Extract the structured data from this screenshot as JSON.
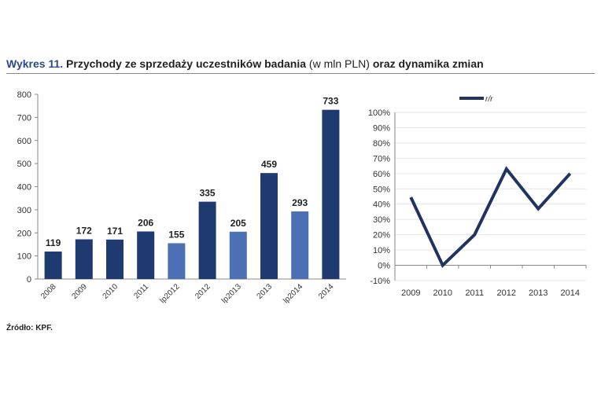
{
  "title": {
    "prefix": "Wykres 11.",
    "main": "Przychody ze sprzedaży uczestników badania",
    "unit": "(w mln PLN)",
    "suffix": "oraz dynamika zmian"
  },
  "source": "Źródło: KPF.",
  "colors": {
    "dark": "#1f3a70",
    "light": "#4d6fb3",
    "line": "#1f3461"
  },
  "chart_data": [
    {
      "type": "bar",
      "categories": [
        "2008",
        "2009",
        "2010",
        "2011",
        "lp2012",
        "2012",
        "lp2013",
        "2013",
        "lp2014",
        "2014"
      ],
      "values": [
        119,
        172,
        171,
        206,
        155,
        335,
        205,
        459,
        293,
        733
      ],
      "highlight": [
        "dark",
        "dark",
        "dark",
        "dark",
        "light",
        "dark",
        "light",
        "dark",
        "light",
        "dark"
      ],
      "ylim": [
        0,
        800
      ],
      "yticks": [
        "0",
        "100",
        "200",
        "300",
        "400",
        "500",
        "600",
        "700",
        "800"
      ],
      "grid": false
    },
    {
      "type": "line",
      "categories": [
        "2009",
        "2010",
        "2011",
        "2012",
        "2013",
        "2014"
      ],
      "series": [
        {
          "name": "r/r",
          "values": [
            44.5,
            0,
            20,
            63,
            37,
            60
          ]
        }
      ],
      "ylim": [
        -10,
        100
      ],
      "yticks": [
        "-10%",
        "0%",
        "10%",
        "20%",
        "30%",
        "40%",
        "50%",
        "60%",
        "70%",
        "80%",
        "90%",
        "100%"
      ],
      "grid": true,
      "legend": "top"
    }
  ]
}
